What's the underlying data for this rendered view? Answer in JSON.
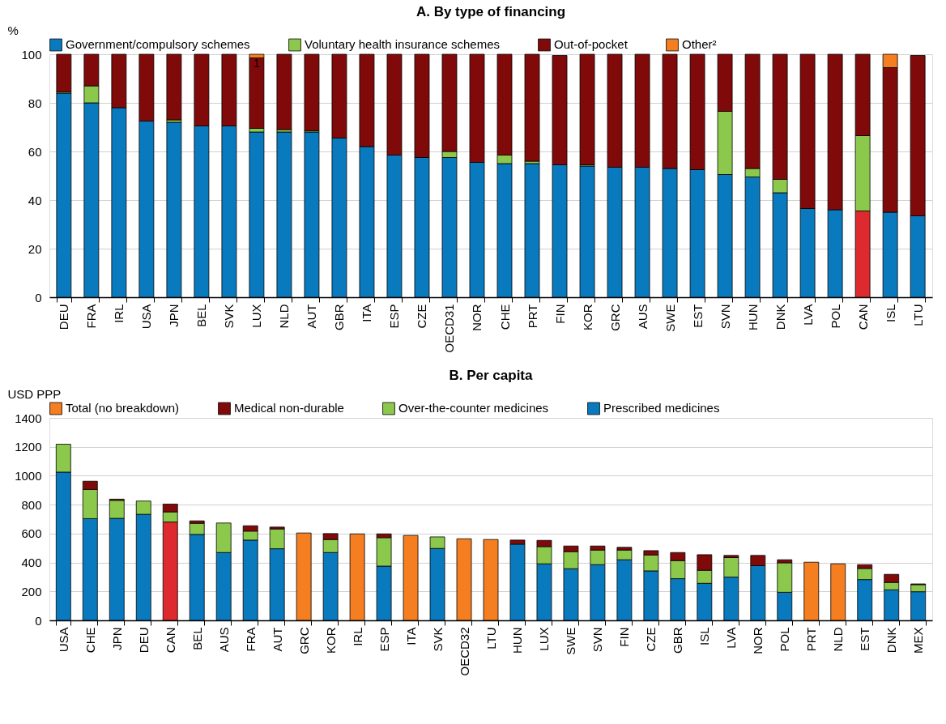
{
  "chart_data": [
    {
      "type": "bar",
      "title": "A. By type of financing",
      "ylabel": "%",
      "stacked": true,
      "grid": "y",
      "legend": "top",
      "categories": [
        "DEU",
        "FRA",
        "IRL",
        "USA",
        "JPN",
        "BEL",
        "SVK",
        "LUX",
        "NLD",
        "AUT",
        "GBR",
        "ITA",
        "ESP",
        "CZE",
        "OECD31",
        "NOR",
        "CHE",
        "PRT",
        "FIN",
        "KOR",
        "GRC",
        "AUS",
        "SWE",
        "EST",
        "SVN",
        "HUN",
        "DNK",
        "LVA",
        "POL",
        "CAN",
        "ISL",
        "LTU"
      ],
      "ylim": [
        0,
        100
      ],
      "yticks": [
        0,
        20,
        40,
        60,
        80,
        100
      ],
      "series": [
        {
          "name": "Government/compulsory schemes",
          "color": "#0a7abf",
          "values": [
            84,
            80,
            78,
            72.5,
            72,
            70.5,
            70.5,
            68,
            68,
            68,
            65.5,
            62,
            58.5,
            57.5,
            57.5,
            55.5,
            55,
            55,
            54.5,
            54,
            53.5,
            53.5,
            53,
            52.5,
            50.5,
            49.5,
            43,
            36.5,
            36,
            35.5,
            35,
            33.5
          ],
          "colors": [
            "#0a7abf",
            "#0a7abf",
            "#0a7abf",
            "#0a7abf",
            "#0a7abf",
            "#0a7abf",
            "#0a7abf",
            "#0a7abf",
            "#0a7abf",
            "#0a7abf",
            "#0a7abf",
            "#0a7abf",
            "#0a7abf",
            "#0a7abf",
            "#0a7abf",
            "#0a7abf",
            "#0a7abf",
            "#0a7abf",
            "#0a7abf",
            "#0a7abf",
            "#0a7abf",
            "#0a7abf",
            "#0a7abf",
            "#0a7abf",
            "#0a7abf",
            "#0a7abf",
            "#0a7abf",
            "#0a7abf",
            "#0a7abf",
            "#dc2a2e",
            "#0a7abf",
            "#0a7abf"
          ]
        },
        {
          "name": "Voluntary health insurance schemes",
          "color": "#8cc84b",
          "values": [
            0.5,
            7,
            null,
            null,
            1,
            null,
            null,
            1.5,
            1,
            0.5,
            null,
            null,
            null,
            null,
            2.5,
            null,
            3.5,
            1,
            null,
            0.5,
            null,
            null,
            null,
            null,
            26,
            3.5,
            5.5,
            null,
            null,
            31,
            null,
            null
          ]
        },
        {
          "name": "Out-of-pocket",
          "color": "#800a0a",
          "values": [
            15.5,
            13,
            22,
            27.5,
            27,
            29.5,
            29.5,
            29,
            31,
            31.5,
            34.5,
            38,
            41.5,
            42.5,
            40,
            44.5,
            41.5,
            44,
            45,
            45.5,
            46.5,
            46.5,
            47,
            47.5,
            23.5,
            47,
            51.5,
            63.5,
            64,
            33.5,
            59.5,
            66
          ]
        },
        {
          "name": "Other²",
          "color": "#f47e20",
          "values": [
            null,
            null,
            null,
            null,
            null,
            null,
            null,
            1.5,
            null,
            null,
            null,
            null,
            null,
            null,
            null,
            null,
            null,
            null,
            null,
            null,
            null,
            null,
            null,
            null,
            null,
            null,
            null,
            null,
            null,
            null,
            5.5,
            null
          ]
        }
      ],
      "annotations": [
        {
          "text": "1",
          "x": "LUX",
          "y": 98.5
        }
      ]
    },
    {
      "type": "bar",
      "title": "B. Per capita",
      "ylabel": "USD PPP",
      "stacked": true,
      "grid": "y",
      "legend": "top",
      "categories": [
        "USA",
        "CHE",
        "JPN",
        "DEU",
        "CAN",
        "BEL",
        "AUS",
        "FRA",
        "AUT",
        "GRC",
        "KOR",
        "IRL",
        "ESP",
        "ITA",
        "SVK",
        "OECD32",
        "LTU",
        "HUN",
        "LUX",
        "SWE",
        "SVN",
        "FIN",
        "CZE",
        "GBR",
        "ISL",
        "LVA",
        "NOR",
        "POL",
        "PRT",
        "NLD",
        "EST",
        "DNK",
        "MEX"
      ],
      "ylim": [
        0,
        1400
      ],
      "yticks": [
        0,
        200,
        400,
        600,
        800,
        1000,
        1200,
        1400
      ],
      "series": [
        {
          "name": "Prescribed medicines",
          "color": "#0a7abf",
          "values": [
            1025,
            703,
            705,
            733,
            680,
            594,
            469,
            555,
            495,
            null,
            469,
            null,
            375,
            null,
            497,
            null,
            null,
            527,
            391,
            357,
            385,
            419,
            342,
            288,
            256,
            299,
            378,
            194,
            null,
            null,
            282,
            211,
            198
          ],
          "colors": [
            "#0a7abf",
            "#0a7abf",
            "#0a7abf",
            "#0a7abf",
            "#dc2a2e",
            "#0a7abf",
            "#0a7abf",
            "#0a7abf",
            "#0a7abf",
            "#0a7abf",
            "#0a7abf",
            "#0a7abf",
            "#0a7abf",
            "#0a7abf",
            "#0a7abf",
            "#0a7abf",
            "#0a7abf",
            "#0a7abf",
            "#0a7abf",
            "#0a7abf",
            "#0a7abf",
            "#0a7abf",
            "#0a7abf",
            "#0a7abf",
            "#0a7abf",
            "#0a7abf",
            "#0a7abf",
            "#0a7abf",
            "#0a7abf",
            "#0a7abf",
            "#0a7abf",
            "#0a7abf",
            "#0a7abf"
          ]
        },
        {
          "name": "Over-the-counter medicines",
          "color": "#8cc84b",
          "values": [
            193,
            202,
            125,
            92,
            70,
            77,
            204,
            62,
            137,
            null,
            90,
            null,
            197,
            null,
            80,
            null,
            null,
            null,
            119,
            118,
            101,
            67,
            110,
            125,
            90,
            135,
            null,
            204,
            null,
            null,
            77,
            51,
            49
          ]
        },
        {
          "name": "Medical non-durable",
          "color": "#800a0a",
          "values": [
            null,
            57,
            8,
            null,
            54,
            17,
            null,
            37,
            13,
            null,
            41,
            null,
            26,
            null,
            null,
            null,
            null,
            28,
            43,
            39,
            28,
            19,
            30,
            56,
            108,
            15,
            71,
            21,
            null,
            null,
            26,
            56,
            5
          ]
        },
        {
          "name": "Total (no breakdown)",
          "color": "#f47e20",
          "values": [
            null,
            null,
            null,
            null,
            null,
            null,
            null,
            null,
            null,
            604,
            null,
            598,
            null,
            587,
            null,
            564,
            559,
            null,
            null,
            null,
            null,
            null,
            null,
            null,
            null,
            null,
            null,
            null,
            402,
            391,
            null,
            null,
            null
          ]
        }
      ]
    }
  ]
}
